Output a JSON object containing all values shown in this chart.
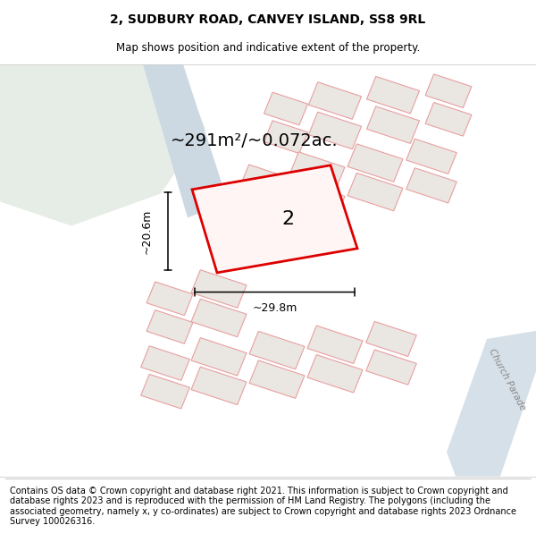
{
  "title": "2, SUDBURY ROAD, CANVEY ISLAND, SS8 9RL",
  "subtitle": "Map shows position and indicative extent of the property.",
  "footer": "Contains OS data © Crown copyright and database right 2021. This information is subject to Crown copyright and database rights 2023 and is reproduced with the permission of HM Land Registry. The polygons (including the associated geometry, namely x, y co-ordinates) are subject to Crown copyright and database rights 2023 Ordnance Survey 100026316.",
  "area_label": "~291m²/~0.072ac.",
  "width_label": "~29.8m",
  "height_label": "~20.6m",
  "number_label": "2",
  "map_bg": "#f2f0ed",
  "green_color": "#e6ede6",
  "road_color": "#ccd9e3",
  "plot_color": "#dd0000",
  "bfill": "#eae6e2",
  "boutline": "#e8a0a0",
  "church_parade_color": "#888888",
  "title_fontsize": 10,
  "subtitle_fontsize": 8.5,
  "footer_fontsize": 7.0,
  "area_fontsize": 14,
  "dim_fontsize": 9,
  "number_fontsize": 16
}
